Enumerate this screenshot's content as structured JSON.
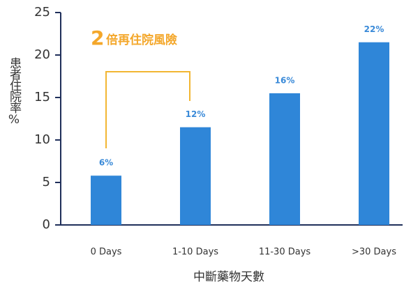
{
  "chart_data": {
    "type": "bar",
    "annotation": {
      "number": "2",
      "text": "倍再住院風險"
    },
    "y_label": "患者住院率%",
    "x_label": "中斷藥物天數",
    "categories": [
      "0 Days",
      "1-10 Days",
      "11-30 Days",
      ">30 Days"
    ],
    "values": [
      5.8,
      11.5,
      15.5,
      21.5
    ],
    "value_labels": [
      "6%",
      "12%",
      "16%",
      "22%"
    ],
    "color": "#2f86d8",
    "ylim": [
      0,
      25
    ],
    "yticks": [
      0,
      5,
      10,
      15,
      20,
      25
    ]
  }
}
